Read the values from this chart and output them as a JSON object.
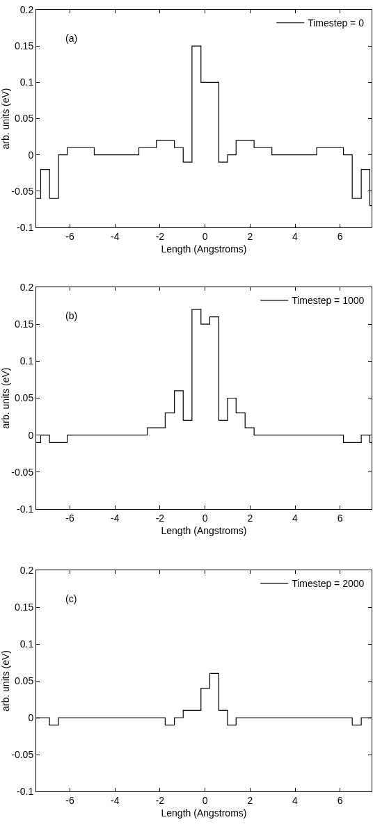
{
  "chart_data": [
    {
      "type": "step",
      "xlabel": "Length (Angstroms)",
      "ylabel": "arb. units (eV)",
      "annotations": [
        "(a)"
      ],
      "legend": "top right",
      "xlim": [
        -7.5,
        7.4
      ],
      "ylim": [
        -0.1,
        0.2
      ],
      "xticks": [
        -6,
        -4,
        -2,
        0,
        2,
        4,
        6
      ],
      "yticks": [
        -0.1,
        -0.05,
        0,
        0.05,
        0.1,
        0.15,
        0.2
      ],
      "series": [
        {
          "name": "Timestep = 0",
          "color": "#000000",
          "x": [
            -7.5,
            -7.3,
            -6.91,
            -6.51,
            -6.12,
            -4.92,
            -2.94,
            -2.16,
            -1.36,
            -0.97,
            -0.58,
            -0.18,
            0.61,
            1.0,
            1.38,
            2.18,
            2.97,
            4.96,
            6.15,
            6.54,
            6.94,
            7.32,
            7.4
          ],
          "values": [
            -0.06,
            -0.02,
            -0.06,
            0,
            0.01,
            0,
            0.01,
            0.02,
            0.01,
            -0.01,
            0.15,
            0.1,
            -0.01,
            0,
            0.02,
            0.01,
            0,
            0.01,
            0,
            -0.06,
            -0.02,
            -0.07,
            -0.07
          ]
        }
      ]
    },
    {
      "type": "step",
      "xlabel": "Length (Angstroms)",
      "ylabel": "arb. units (eV)",
      "annotations": [
        "(b)"
      ],
      "legend": "top right",
      "xlim": [
        -7.5,
        7.4
      ],
      "ylim": [
        -0.1,
        0.2
      ],
      "xticks": [
        -6,
        -4,
        -2,
        0,
        2,
        4,
        6
      ],
      "yticks": [
        -0.1,
        -0.05,
        0,
        0.05,
        0.1,
        0.15,
        0.2
      ],
      "series": [
        {
          "name": "Timestep = 1000",
          "color": "#000000",
          "x": [
            -7.5,
            -7.3,
            -6.91,
            -6.12,
            -2.56,
            -1.77,
            -1.36,
            -0.97,
            -0.58,
            -0.18,
            0.21,
            0.61,
            1.0,
            1.38,
            1.78,
            2.18,
            6.15,
            6.94,
            7.32,
            7.4
          ],
          "values": [
            -0.01,
            0,
            -0.01,
            0,
            0.01,
            0.03,
            0.06,
            0.02,
            0.17,
            0.15,
            0.16,
            0.02,
            0.05,
            0.03,
            0.01,
            0,
            -0.01,
            0,
            -0.01,
            -0.01
          ]
        }
      ]
    },
    {
      "type": "step",
      "xlabel": "Length (Angstroms)",
      "ylabel": "arb. units (eV)",
      "annotations": [
        "(c)"
      ],
      "legend": "top right",
      "xlim": [
        -7.5,
        7.4
      ],
      "ylim": [
        -0.1,
        0.2
      ],
      "xticks": [
        -6,
        -4,
        -2,
        0,
        2,
        4,
        6
      ],
      "yticks": [
        -0.1,
        -0.05,
        0,
        0.05,
        0.1,
        0.15,
        0.2
      ],
      "series": [
        {
          "name": "Timestep = 2000",
          "color": "#000000",
          "x": [
            -7.5,
            -6.91,
            -6.51,
            -1.77,
            -1.36,
            -0.97,
            -0.18,
            0.21,
            0.61,
            1.0,
            1.38,
            6.54,
            6.94,
            7.4
          ],
          "values": [
            0,
            -0.01,
            0,
            -0.01,
            0,
            0.01,
            0.04,
            0.06,
            0.01,
            -0.01,
            0,
            -0.01,
            0,
            0
          ]
        }
      ]
    }
  ]
}
